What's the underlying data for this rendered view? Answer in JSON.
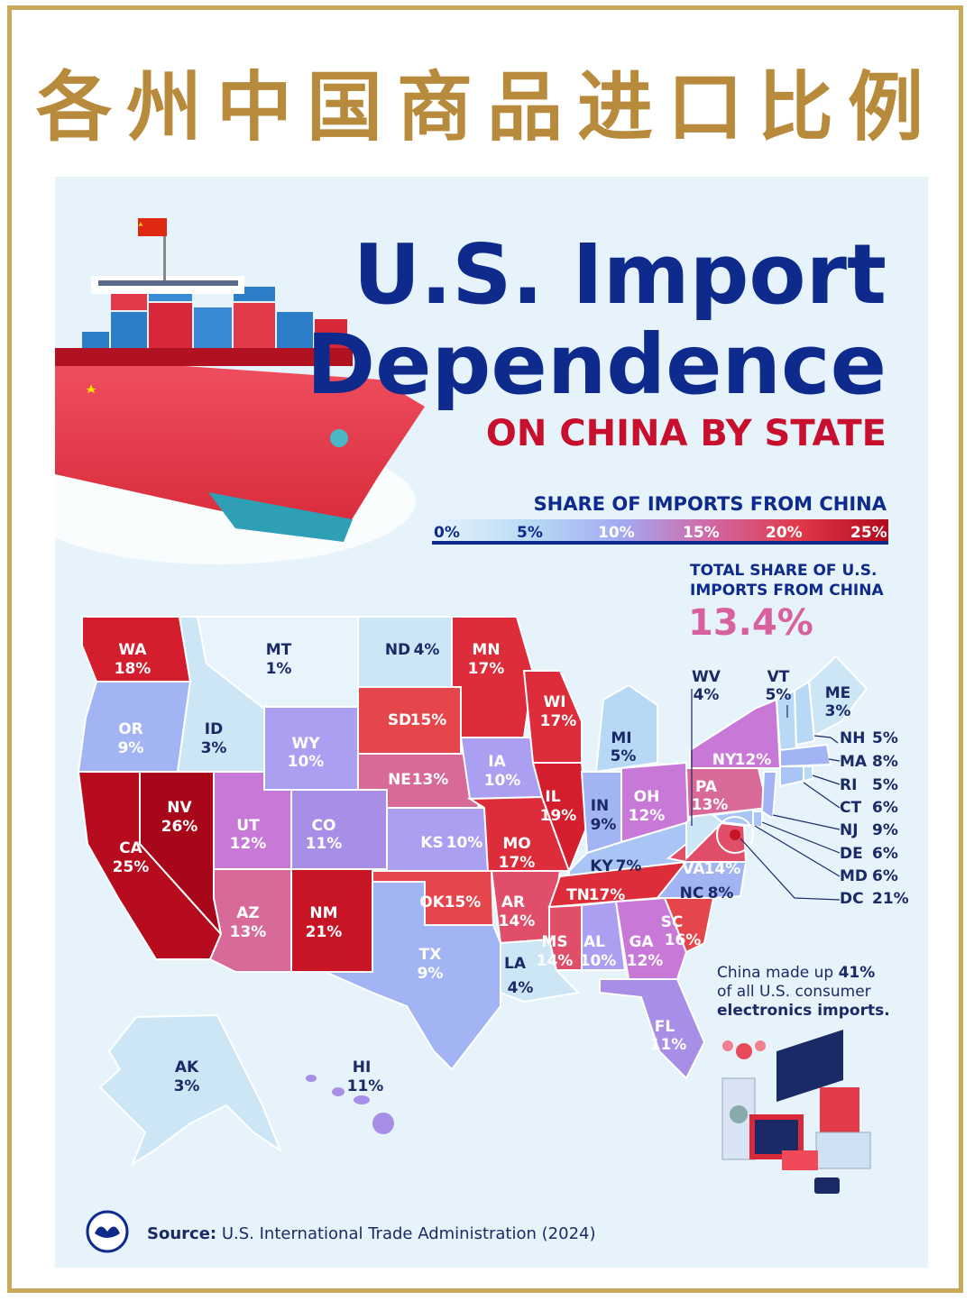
{
  "cn_title": "各州中国商品进口比例",
  "headline": {
    "line1": "U.S. Import",
    "line2": "Dependence",
    "line3": "ON CHINA BY STATE"
  },
  "legend": {
    "title": "SHARE OF IMPORTS FROM CHINA",
    "ticks": [
      "0%",
      "5%",
      "10%",
      "15%",
      "20%",
      "25%"
    ]
  },
  "total": {
    "label_line1": "TOTAL SHARE OF U.S.",
    "label_line2": "IMPORTS FROM CHINA",
    "value": "13.4%"
  },
  "states": {
    "WA": {
      "abbr": "WA",
      "pct": "18%"
    },
    "OR": {
      "abbr": "OR",
      "pct": "9%"
    },
    "CA": {
      "abbr": "CA",
      "pct": "25%"
    },
    "NV": {
      "abbr": "NV",
      "pct": "26%"
    },
    "ID": {
      "abbr": "ID",
      "pct": "3%"
    },
    "MT": {
      "abbr": "MT",
      "pct": "1%"
    },
    "WY": {
      "abbr": "WY",
      "pct": "10%"
    },
    "UT": {
      "abbr": "UT",
      "pct": "12%"
    },
    "CO": {
      "abbr": "CO",
      "pct": "11%"
    },
    "AZ": {
      "abbr": "AZ",
      "pct": "13%"
    },
    "NM": {
      "abbr": "NM",
      "pct": "21%"
    },
    "ND": {
      "abbr": "ND",
      "pct": "4%"
    },
    "SD": {
      "abbr": "SD",
      "pct": "15%"
    },
    "NE": {
      "abbr": "NE",
      "pct": "13%"
    },
    "KS": {
      "abbr": "KS",
      "pct": "10%"
    },
    "OK": {
      "abbr": "OK",
      "pct": "15%"
    },
    "TX": {
      "abbr": "TX",
      "pct": "9%"
    },
    "MN": {
      "abbr": "MN",
      "pct": "17%"
    },
    "IA": {
      "abbr": "IA",
      "pct": "10%"
    },
    "MO": {
      "abbr": "MO",
      "pct": "17%"
    },
    "AR": {
      "abbr": "AR",
      "pct": "14%"
    },
    "LA": {
      "abbr": "LA",
      "pct": "4%"
    },
    "WI": {
      "abbr": "WI",
      "pct": "17%"
    },
    "IL": {
      "abbr": "IL",
      "pct": "19%"
    },
    "MI": {
      "abbr": "MI",
      "pct": "5%"
    },
    "IN": {
      "abbr": "IN",
      "pct": "9%"
    },
    "OH": {
      "abbr": "OH",
      "pct": "12%"
    },
    "KY": {
      "abbr": "KY",
      "pct": "7%"
    },
    "TN": {
      "abbr": "TN",
      "pct": "17%"
    },
    "MS": {
      "abbr": "MS",
      "pct": "14%"
    },
    "AL": {
      "abbr": "AL",
      "pct": "10%"
    },
    "GA": {
      "abbr": "GA",
      "pct": "12%"
    },
    "FL": {
      "abbr": "FL",
      "pct": "11%"
    },
    "SC": {
      "abbr": "SC",
      "pct": "16%"
    },
    "NC": {
      "abbr": "NC",
      "pct": "8%"
    },
    "VA": {
      "abbr": "VA",
      "pct": "14%"
    },
    "WV": {
      "abbr": "WV",
      "pct": "4%"
    },
    "PA": {
      "abbr": "PA",
      "pct": "13%"
    },
    "NY": {
      "abbr": "NY",
      "pct": "12%"
    },
    "VT": {
      "abbr": "VT",
      "pct": "5%"
    },
    "ME": {
      "abbr": "ME",
      "pct": "3%"
    },
    "NH": {
      "abbr": "NH",
      "pct": "5%"
    },
    "MA": {
      "abbr": "MA",
      "pct": "8%"
    },
    "RI": {
      "abbr": "RI",
      "pct": "5%"
    },
    "CT": {
      "abbr": "CT",
      "pct": "6%"
    },
    "NJ": {
      "abbr": "NJ",
      "pct": "9%"
    },
    "DE": {
      "abbr": "DE",
      "pct": "6%"
    },
    "MD": {
      "abbr": "MD",
      "pct": "6%"
    },
    "DC": {
      "abbr": "DC",
      "pct": "21%"
    },
    "AK": {
      "abbr": "AK",
      "pct": "3%"
    },
    "HI": {
      "abbr": "HI",
      "pct": "11%"
    }
  },
  "callout": {
    "line1_pre": "China made up ",
    "line1_bold": "41%",
    "line2": "of all U.S. consumer",
    "line3": "electronics imports."
  },
  "source": {
    "label": "Source:",
    "text": " U.S. International Trade Administration (2024)"
  },
  "colors": {
    "c1": "#e3f2fb",
    "c3": "#cce6f6",
    "c5": "#b7d9f5",
    "c7": "#a9c5f5",
    "c9": "#a3b4f4",
    "c10": "#aa9ff0",
    "c11": "#a88ee6",
    "c12": "#c878d6",
    "c13": "#d86a9a",
    "c14": "#e04e6a",
    "c15": "#e4464c",
    "c17": "#dd2c3a",
    "c19": "#d41e2e",
    "c21": "#c81526",
    "c25": "#b60c1e",
    "c26": "#a8071a",
    "navy": "#0d2a8c",
    "red": "#c8102e",
    "gold": "#b88a3c"
  }
}
